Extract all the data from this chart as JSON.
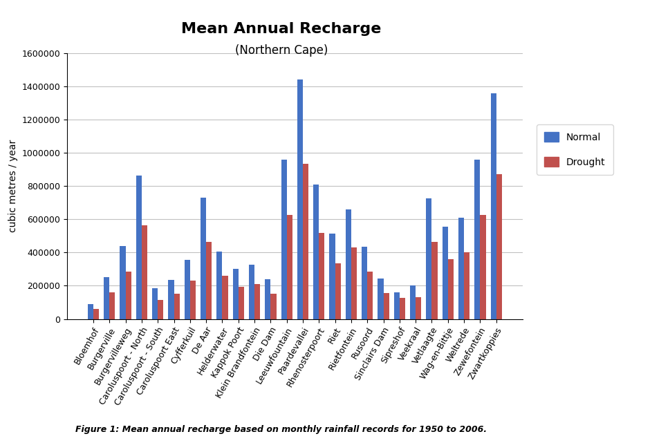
{
  "title": "Mean Annual Recharge",
  "subtitle": "(Northern Cape)",
  "ylabel": "cubic metres / year",
  "caption": "Figure 1: Mean annual recharge based on monthly rainfall records for 1950 to 2006.",
  "categories": [
    "Bloemhof",
    "Burgerville",
    "Burgervilleweg",
    "Caroluspoort - North",
    "Caroluspoort - South",
    "Caroluspoort East",
    "Cyfferkuil",
    "De Aar",
    "Helderwater",
    "Kappok Poort",
    "Klein Brandfontein",
    "Die Dam",
    "Leeuwfountain",
    "Paardevallei",
    "Rhenosterpoort",
    "Riet",
    "Rietfontein",
    "Rusoord",
    "Sinclairs Dam",
    "Sipreshof",
    "Veekraal",
    "Vetlaagte",
    "Wag-en-Bittje",
    "Weltrede",
    "Zewefontein",
    "Zwartkoppies"
  ],
  "normal": [
    90000,
    250000,
    440000,
    865000,
    185000,
    235000,
    355000,
    730000,
    405000,
    300000,
    325000,
    240000,
    960000,
    1440000,
    810000,
    515000,
    660000,
    435000,
    245000,
    160000,
    200000,
    725000,
    555000,
    610000,
    960000,
    1360000
  ],
  "drought": [
    60000,
    160000,
    285000,
    565000,
    115000,
    150000,
    230000,
    465000,
    260000,
    195000,
    210000,
    150000,
    625000,
    935000,
    520000,
    335000,
    430000,
    285000,
    155000,
    125000,
    130000,
    465000,
    360000,
    400000,
    625000,
    870000
  ],
  "normal_color": "#4472C4",
  "drought_color": "#C0504D",
  "ylim": [
    0,
    1600000
  ],
  "yticks": [
    0,
    200000,
    400000,
    600000,
    800000,
    1000000,
    1200000,
    1400000,
    1600000
  ],
  "background_color": "#FFFFFF",
  "legend_labels": [
    "Normal",
    "Drought"
  ],
  "bar_width": 0.35
}
